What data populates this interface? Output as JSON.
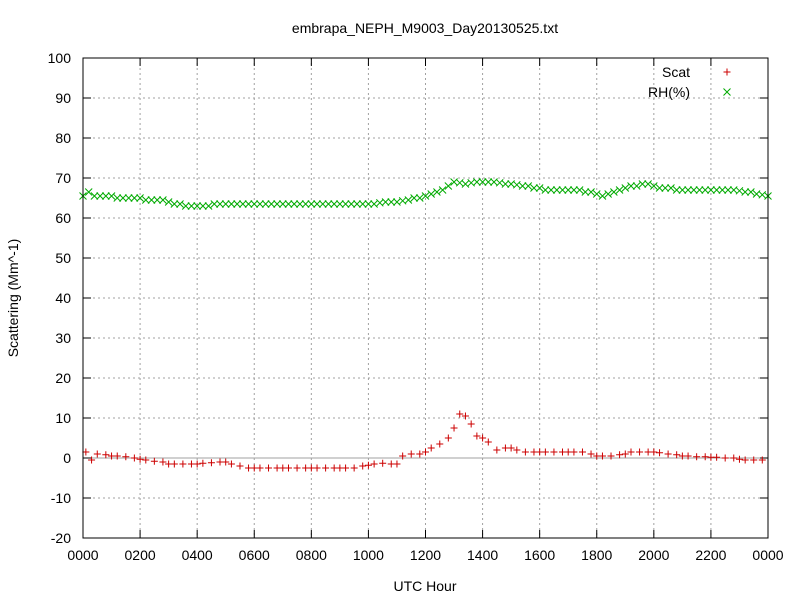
{
  "chart_data": {
    "type": "scatter",
    "title": "embrapa_NEPH_M9003_Day20130525.txt",
    "xlabel": "UTC Hour",
    "ylabel": "Scattering (Mm^-1)",
    "xlim": [
      0,
      24
    ],
    "ylim": [
      -20,
      100
    ],
    "x_ticks": [
      0,
      2,
      4,
      6,
      8,
      10,
      12,
      14,
      16,
      18,
      20,
      22,
      24
    ],
    "x_tick_labels": [
      "0000",
      "0200",
      "0400",
      "0600",
      "0800",
      "1000",
      "1200",
      "1400",
      "1600",
      "1800",
      "2000",
      "2200",
      "0000"
    ],
    "y_ticks": [
      -20,
      -10,
      0,
      10,
      20,
      30,
      40,
      50,
      60,
      70,
      80,
      90,
      100
    ],
    "y_tick_labels": [
      "-20",
      "-10",
      "0",
      "10",
      "20",
      "30",
      "40",
      "50",
      "60",
      "70",
      "80",
      "90",
      "100"
    ],
    "grid": true,
    "zero_line": true,
    "legend_position": "top-right",
    "series": [
      {
        "name": "Scat",
        "marker": "plus",
        "color": "#cc0000",
        "x": [
          0.1,
          0.3,
          0.5,
          0.8,
          1.0,
          1.2,
          1.5,
          1.8,
          2.0,
          2.2,
          2.5,
          2.8,
          3.0,
          3.2,
          3.5,
          3.8,
          4.0,
          4.2,
          4.5,
          4.8,
          5.0,
          5.2,
          5.5,
          5.8,
          6.0,
          6.2,
          6.5,
          6.8,
          7.0,
          7.2,
          7.5,
          7.8,
          8.0,
          8.2,
          8.5,
          8.8,
          9.0,
          9.2,
          9.5,
          9.8,
          10.0,
          10.2,
          10.5,
          10.8,
          11.0,
          11.2,
          11.5,
          11.8,
          12.0,
          12.2,
          12.5,
          12.8,
          13.0,
          13.2,
          13.4,
          13.6,
          13.8,
          14.0,
          14.2,
          14.5,
          14.8,
          15.0,
          15.2,
          15.5,
          15.8,
          16.0,
          16.2,
          16.5,
          16.8,
          17.0,
          17.2,
          17.5,
          17.8,
          18.0,
          18.2,
          18.5,
          18.8,
          19.0,
          19.2,
          19.5,
          19.8,
          20.0,
          20.2,
          20.5,
          20.8,
          21.0,
          21.2,
          21.5,
          21.8,
          22.0,
          22.2,
          22.5,
          22.8,
          23.0,
          23.2,
          23.5,
          23.8
        ],
        "y": [
          1.5,
          -0.5,
          1.0,
          0.8,
          0.5,
          0.5,
          0.3,
          0.0,
          -0.3,
          -0.5,
          -0.8,
          -1.0,
          -1.5,
          -1.5,
          -1.5,
          -1.5,
          -1.5,
          -1.3,
          -1.2,
          -1.0,
          -1.0,
          -1.5,
          -2.0,
          -2.5,
          -2.5,
          -2.5,
          -2.5,
          -2.5,
          -2.5,
          -2.5,
          -2.5,
          -2.5,
          -2.5,
          -2.5,
          -2.5,
          -2.5,
          -2.5,
          -2.5,
          -2.5,
          -2.0,
          -1.8,
          -1.5,
          -1.3,
          -1.5,
          -1.5,
          0.5,
          1.0,
          1.0,
          1.5,
          2.5,
          3.5,
          5.0,
          7.5,
          11.0,
          10.5,
          8.5,
          5.5,
          5.0,
          4.0,
          2.0,
          2.5,
          2.5,
          2.0,
          1.5,
          1.5,
          1.5,
          1.5,
          1.5,
          1.5,
          1.5,
          1.5,
          1.5,
          1.0,
          0.5,
          0.5,
          0.5,
          0.8,
          1.0,
          1.5,
          1.5,
          1.5,
          1.5,
          1.3,
          1.0,
          0.8,
          0.5,
          0.5,
          0.3,
          0.3,
          0.2,
          0.2,
          0.0,
          0.0,
          -0.3,
          -0.5,
          -0.5,
          -0.5
        ]
      },
      {
        "name": "RH(%)",
        "marker": "cross",
        "color": "#00aa00",
        "x": [
          0.0,
          0.2,
          0.4,
          0.6,
          0.8,
          1.0,
          1.2,
          1.4,
          1.6,
          1.8,
          2.0,
          2.2,
          2.4,
          2.6,
          2.8,
          3.0,
          3.2,
          3.4,
          3.6,
          3.8,
          4.0,
          4.2,
          4.4,
          4.6,
          4.8,
          5.0,
          5.2,
          5.4,
          5.6,
          5.8,
          6.0,
          6.2,
          6.4,
          6.6,
          6.8,
          7.0,
          7.2,
          7.4,
          7.6,
          7.8,
          8.0,
          8.2,
          8.4,
          8.6,
          8.8,
          9.0,
          9.2,
          9.4,
          9.6,
          9.8,
          10.0,
          10.2,
          10.4,
          10.6,
          10.8,
          11.0,
          11.2,
          11.4,
          11.6,
          11.8,
          12.0,
          12.2,
          12.4,
          12.6,
          12.8,
          13.0,
          13.2,
          13.4,
          13.6,
          13.8,
          14.0,
          14.2,
          14.4,
          14.6,
          14.8,
          15.0,
          15.2,
          15.4,
          15.6,
          15.8,
          16.0,
          16.2,
          16.4,
          16.6,
          16.8,
          17.0,
          17.2,
          17.4,
          17.6,
          17.8,
          18.0,
          18.2,
          18.4,
          18.6,
          18.8,
          19.0,
          19.2,
          19.4,
          19.6,
          19.8,
          20.0,
          20.2,
          20.4,
          20.6,
          20.8,
          21.0,
          21.2,
          21.4,
          21.6,
          21.8,
          22.0,
          22.2,
          22.4,
          22.6,
          22.8,
          23.0,
          23.2,
          23.4,
          23.6,
          23.8,
          24.0
        ],
        "y": [
          65.5,
          66.5,
          65.5,
          65.5,
          65.5,
          65.5,
          65.0,
          65.0,
          65.0,
          65.0,
          65.0,
          64.5,
          64.5,
          64.5,
          64.5,
          64.0,
          63.5,
          63.5,
          63.0,
          63.0,
          63.0,
          63.0,
          63.0,
          63.5,
          63.5,
          63.5,
          63.5,
          63.5,
          63.5,
          63.5,
          63.5,
          63.5,
          63.5,
          63.5,
          63.5,
          63.5,
          63.5,
          63.5,
          63.5,
          63.5,
          63.5,
          63.5,
          63.5,
          63.5,
          63.5,
          63.5,
          63.5,
          63.5,
          63.5,
          63.5,
          63.5,
          63.5,
          63.8,
          64.0,
          64.0,
          64.0,
          64.3,
          64.5,
          65.0,
          65.0,
          65.5,
          66.0,
          66.5,
          67.0,
          68.0,
          69.0,
          68.8,
          68.5,
          68.8,
          69.0,
          69.0,
          69.0,
          69.0,
          68.8,
          68.5,
          68.5,
          68.3,
          68.0,
          68.0,
          67.5,
          67.5,
          67.0,
          67.0,
          67.0,
          67.0,
          67.0,
          67.0,
          67.0,
          66.5,
          66.5,
          66.0,
          65.5,
          66.0,
          66.5,
          67.0,
          67.5,
          68.0,
          68.0,
          68.5,
          68.5,
          68.0,
          67.5,
          67.5,
          67.5,
          67.0,
          67.0,
          67.0,
          67.0,
          67.0,
          67.0,
          67.0,
          67.0,
          67.0,
          67.0,
          67.0,
          66.8,
          66.5,
          66.5,
          66.0,
          65.8,
          65.5
        ]
      }
    ]
  }
}
